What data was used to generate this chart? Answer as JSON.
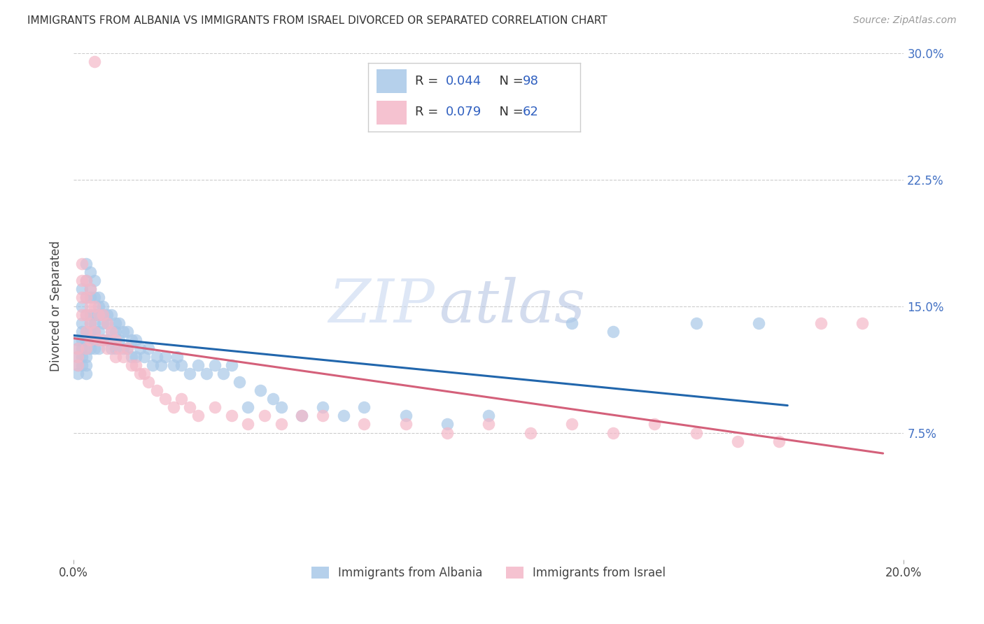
{
  "title": "IMMIGRANTS FROM ALBANIA VS IMMIGRANTS FROM ISRAEL DIVORCED OR SEPARATED CORRELATION CHART",
  "source": "Source: ZipAtlas.com",
  "ylabel": "Divorced or Separated",
  "albania_color": "#a8c8e8",
  "israel_color": "#f4b8c8",
  "albania_line_color": "#2166ac",
  "israel_line_color": "#d4607a",
  "watermark_zip": "ZIP",
  "watermark_atlas": "atlas",
  "background_color": "#ffffff",
  "grid_color": "#cccccc",
  "xlim": [
    0.0,
    0.2
  ],
  "ylim": [
    0.0,
    0.3
  ],
  "legend_text_color": "#3060c0",
  "albania_R": "0.044",
  "albania_N": "98",
  "israel_R": "0.079",
  "israel_N": "62",
  "albania_x": [
    0.001,
    0.001,
    0.001,
    0.001,
    0.001,
    0.002,
    0.002,
    0.002,
    0.002,
    0.002,
    0.002,
    0.002,
    0.002,
    0.003,
    0.003,
    0.003,
    0.003,
    0.003,
    0.003,
    0.003,
    0.003,
    0.003,
    0.003,
    0.004,
    0.004,
    0.004,
    0.004,
    0.004,
    0.004,
    0.004,
    0.004,
    0.005,
    0.005,
    0.005,
    0.005,
    0.005,
    0.005,
    0.005,
    0.006,
    0.006,
    0.006,
    0.006,
    0.006,
    0.007,
    0.007,
    0.007,
    0.007,
    0.008,
    0.008,
    0.008,
    0.009,
    0.009,
    0.009,
    0.01,
    0.01,
    0.01,
    0.011,
    0.011,
    0.012,
    0.012,
    0.013,
    0.013,
    0.014,
    0.014,
    0.015,
    0.015,
    0.016,
    0.017,
    0.018,
    0.019,
    0.02,
    0.021,
    0.022,
    0.024,
    0.025,
    0.026,
    0.028,
    0.03,
    0.032,
    0.034,
    0.036,
    0.038,
    0.04,
    0.042,
    0.045,
    0.048,
    0.05,
    0.055,
    0.06,
    0.065,
    0.07,
    0.08,
    0.09,
    0.1,
    0.12,
    0.13,
    0.15,
    0.165
  ],
  "albania_y": [
    0.13,
    0.125,
    0.12,
    0.115,
    0.11,
    0.16,
    0.15,
    0.14,
    0.135,
    0.13,
    0.125,
    0.12,
    0.115,
    0.175,
    0.165,
    0.155,
    0.145,
    0.135,
    0.13,
    0.125,
    0.12,
    0.115,
    0.11,
    0.17,
    0.16,
    0.155,
    0.145,
    0.14,
    0.135,
    0.13,
    0.125,
    0.165,
    0.155,
    0.145,
    0.14,
    0.135,
    0.13,
    0.125,
    0.155,
    0.15,
    0.145,
    0.135,
    0.125,
    0.15,
    0.145,
    0.14,
    0.13,
    0.145,
    0.14,
    0.13,
    0.145,
    0.135,
    0.125,
    0.14,
    0.135,
    0.125,
    0.14,
    0.13,
    0.135,
    0.125,
    0.135,
    0.125,
    0.13,
    0.12,
    0.13,
    0.12,
    0.125,
    0.12,
    0.125,
    0.115,
    0.12,
    0.115,
    0.12,
    0.115,
    0.12,
    0.115,
    0.11,
    0.115,
    0.11,
    0.115,
    0.11,
    0.115,
    0.105,
    0.09,
    0.1,
    0.095,
    0.09,
    0.085,
    0.09,
    0.085,
    0.09,
    0.085,
    0.08,
    0.085,
    0.14,
    0.135,
    0.14,
    0.14
  ],
  "israel_x": [
    0.001,
    0.001,
    0.001,
    0.002,
    0.002,
    0.002,
    0.002,
    0.003,
    0.003,
    0.003,
    0.003,
    0.003,
    0.004,
    0.004,
    0.004,
    0.004,
    0.005,
    0.005,
    0.005,
    0.006,
    0.006,
    0.007,
    0.007,
    0.008,
    0.008,
    0.009,
    0.01,
    0.01,
    0.011,
    0.012,
    0.013,
    0.014,
    0.015,
    0.016,
    0.017,
    0.018,
    0.02,
    0.022,
    0.024,
    0.026,
    0.028,
    0.03,
    0.034,
    0.038,
    0.042,
    0.046,
    0.05,
    0.055,
    0.06,
    0.07,
    0.08,
    0.09,
    0.1,
    0.11,
    0.12,
    0.13,
    0.14,
    0.15,
    0.16,
    0.17,
    0.18,
    0.19
  ],
  "israel_y": [
    0.125,
    0.12,
    0.115,
    0.175,
    0.165,
    0.155,
    0.145,
    0.165,
    0.155,
    0.145,
    0.135,
    0.125,
    0.16,
    0.15,
    0.14,
    0.13,
    0.295,
    0.15,
    0.135,
    0.145,
    0.13,
    0.145,
    0.13,
    0.14,
    0.125,
    0.135,
    0.13,
    0.12,
    0.125,
    0.12,
    0.125,
    0.115,
    0.115,
    0.11,
    0.11,
    0.105,
    0.1,
    0.095,
    0.09,
    0.095,
    0.09,
    0.085,
    0.09,
    0.085,
    0.08,
    0.085,
    0.08,
    0.085,
    0.085,
    0.08,
    0.08,
    0.075,
    0.08,
    0.075,
    0.08,
    0.075,
    0.08,
    0.075,
    0.07,
    0.07,
    0.14,
    0.14
  ]
}
